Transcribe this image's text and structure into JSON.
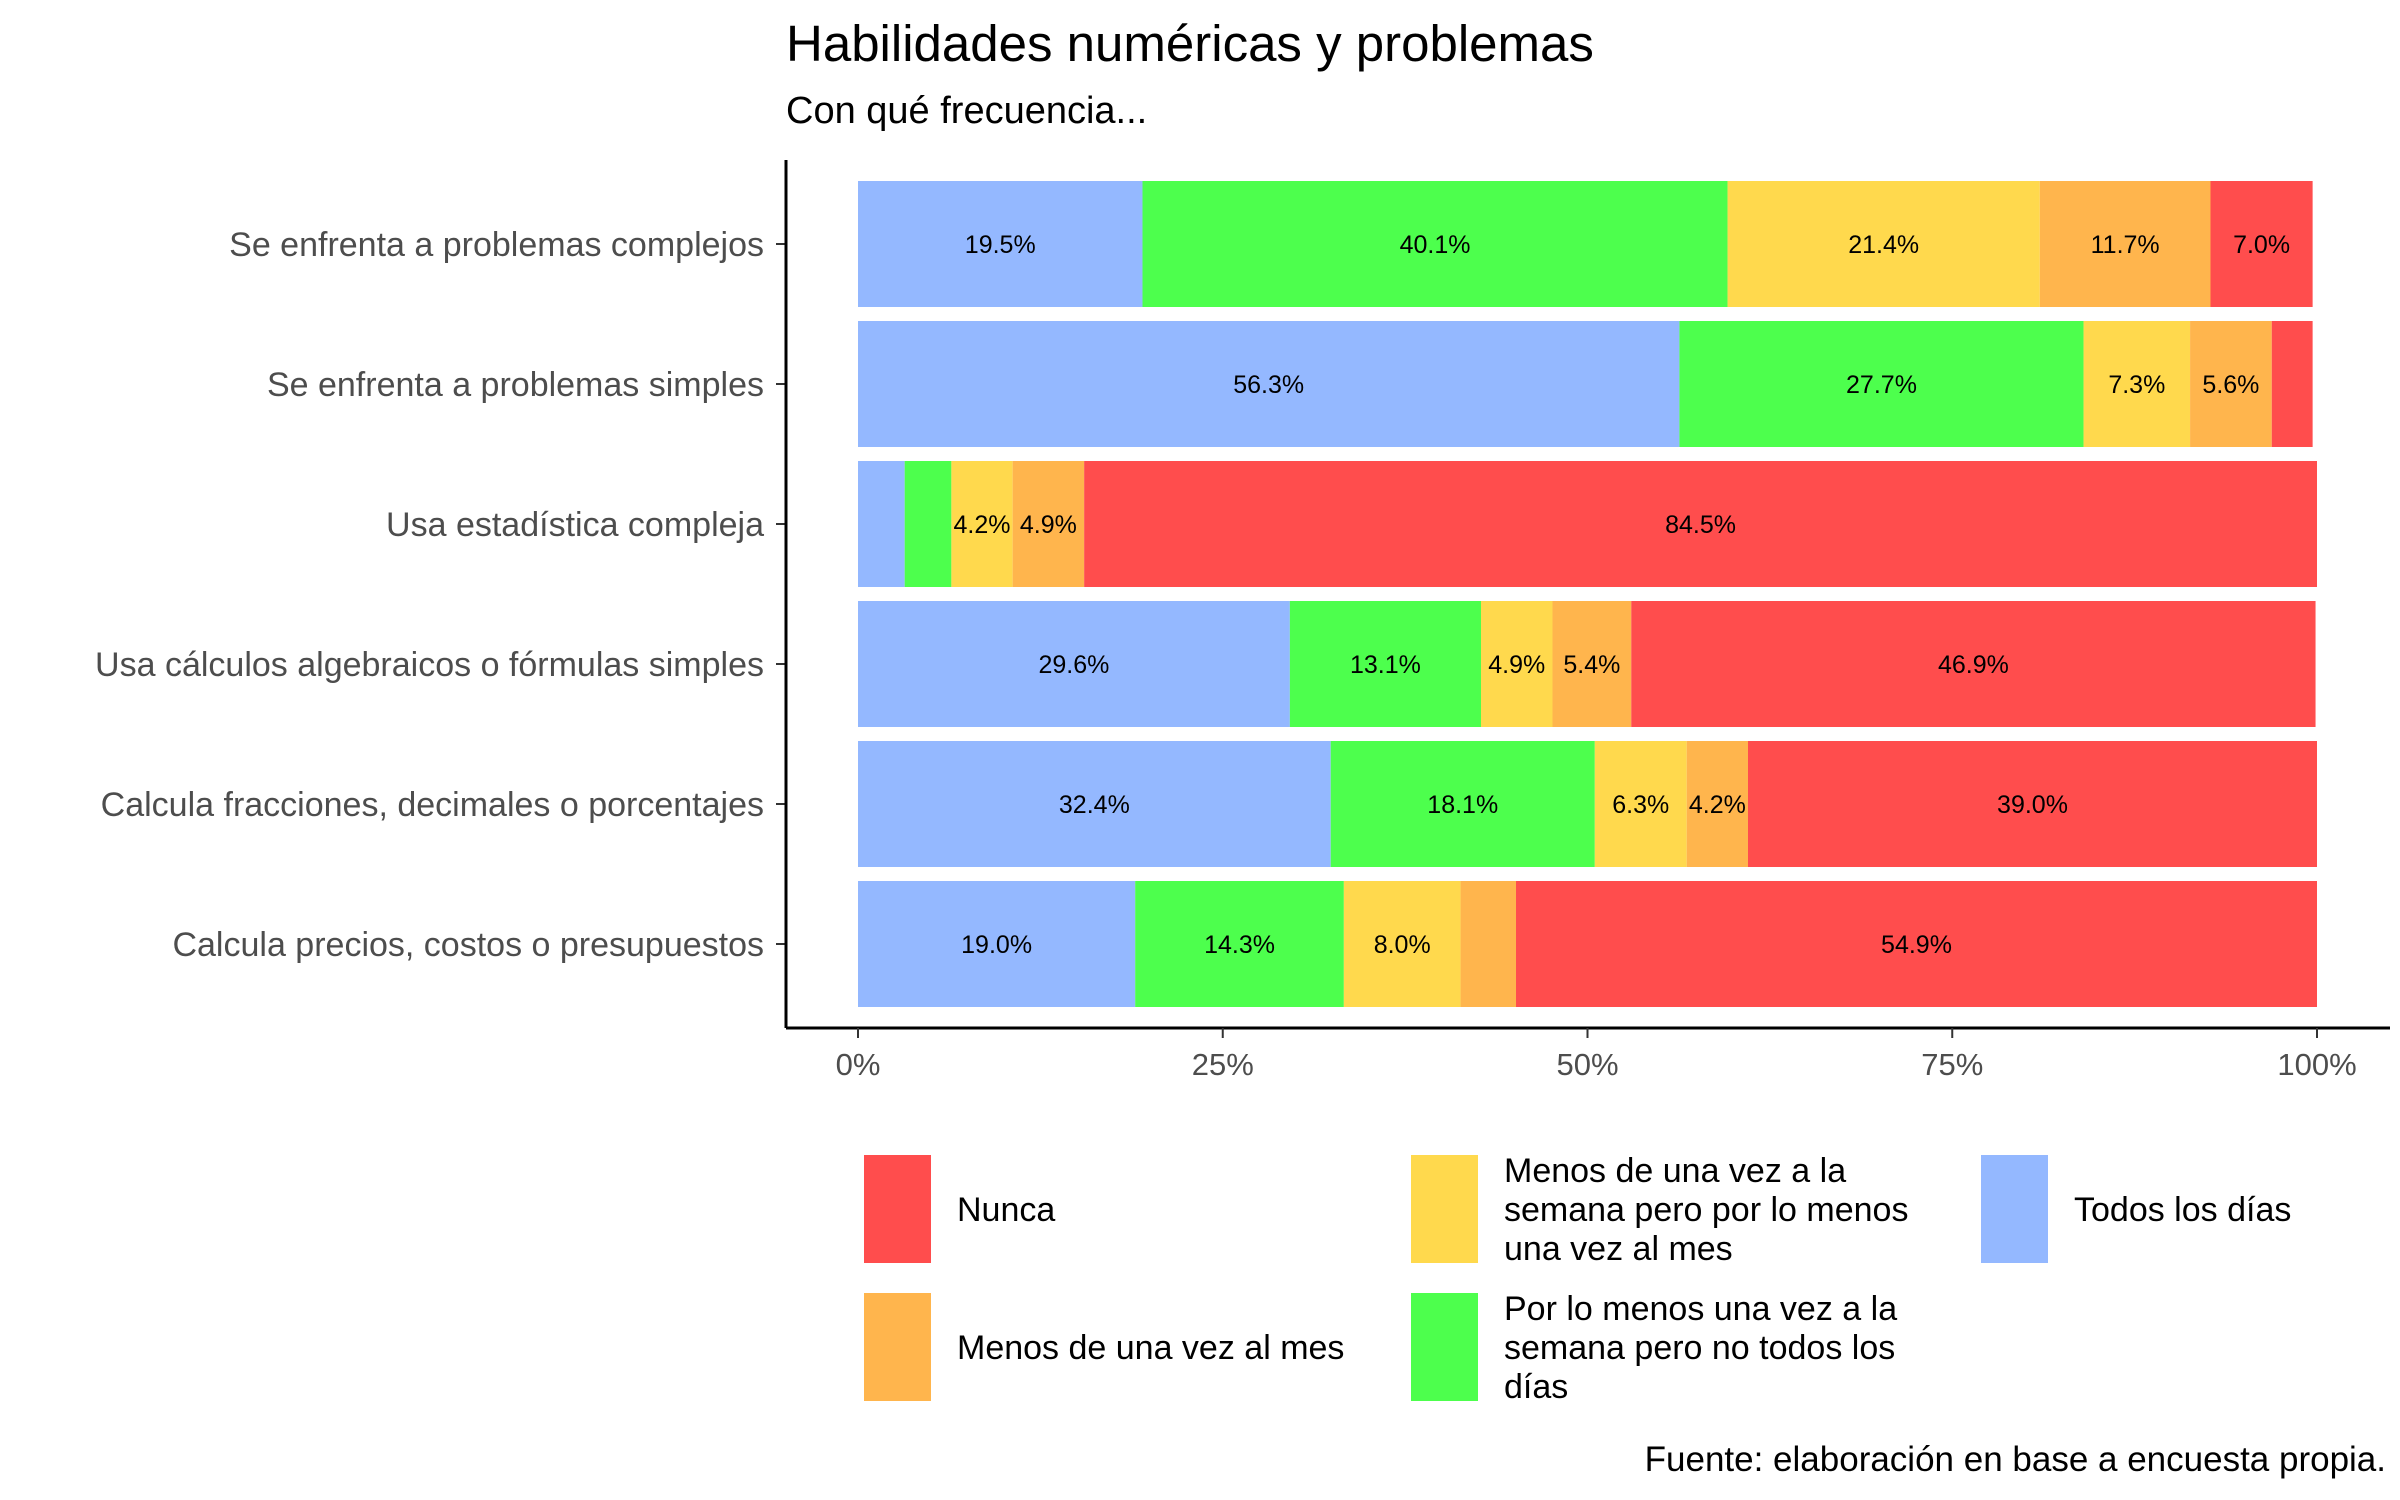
{
  "chart_data": {
    "type": "bar",
    "orientation": "horizontal",
    "stacked": true,
    "title": "Habilidades numéricas y problemas",
    "subtitle": "Con qué frecuencia...",
    "caption": "Fuente: elaboración en base a encuesta propia.",
    "xlim": [
      0,
      1
    ],
    "x_ticks": [
      "0%",
      "25%",
      "50%",
      "75%",
      "100%"
    ],
    "grid": false,
    "legend_position": "bottom",
    "categories": [
      "Se enfrenta a problemas complejos",
      "Se enfrenta a problemas simples",
      "Usa estadística compleja",
      "Usa cálculos algebraicos o fórmulas simples",
      "Calcula fracciones, decimales o porcentajes",
      "Calcula precios, costos o presupuestos"
    ],
    "series": [
      {
        "name": "Todos los días",
        "color": "#94B8FF",
        "values": [
          0.195,
          0.563,
          0.032,
          0.296,
          0.324,
          0.19
        ],
        "labels": [
          "19.5%",
          "56.3%",
          "",
          "29.6%",
          "32.4%",
          "19.0%"
        ]
      },
      {
        "name": "Por lo menos una vez a la semana pero no todos los días",
        "color": "#4DFF4D",
        "values": [
          0.401,
          0.277,
          0.032,
          0.131,
          0.181,
          0.143
        ],
        "labels": [
          "40.1%",
          "27.7%",
          "",
          "13.1%",
          "18.1%",
          "14.3%"
        ]
      },
      {
        "name": "Menos de una vez a la semana pero por lo menos una vez al mes",
        "color": "#FFD94D",
        "values": [
          0.214,
          0.073,
          0.042,
          0.049,
          0.063,
          0.08
        ],
        "labels": [
          "21.4%",
          "7.3%",
          "4.2%",
          "4.9%",
          "6.3%",
          "8.0%"
        ]
      },
      {
        "name": "Menos de una vez al mes",
        "color": "#FFB54D",
        "values": [
          0.117,
          0.056,
          0.049,
          0.054,
          0.042,
          0.038
        ],
        "labels": [
          "11.7%",
          "5.6%",
          "4.9%",
          "5.4%",
          "4.2%",
          ""
        ]
      },
      {
        "name": "Nunca",
        "color": "#FF4D4D",
        "values": [
          0.07,
          0.028,
          0.845,
          0.469,
          0.39,
          0.549
        ],
        "labels": [
          "7.0%",
          "",
          "84.5%",
          "46.9%",
          "39.0%",
          "54.9%"
        ]
      }
    ],
    "legend_items": [
      {
        "label": "Nunca",
        "color": "#FF4D4D"
      },
      {
        "label": "Menos de una vez al mes",
        "color": "#FFB54D"
      },
      {
        "label": "Menos de una vez a la semana pero por lo menos una vez al mes",
        "color": "#FFD94D",
        "lines": [
          "Menos de una vez a la",
          "semana pero por lo menos",
          "una vez al mes"
        ]
      },
      {
        "label": "Por lo menos una vez a la semana pero no todos los días",
        "color": "#4DFF4D",
        "lines": [
          "Por lo menos una vez a la",
          "semana pero no todos los",
          "días"
        ]
      },
      {
        "label": "Todos los días",
        "color": "#94B8FF"
      }
    ]
  }
}
